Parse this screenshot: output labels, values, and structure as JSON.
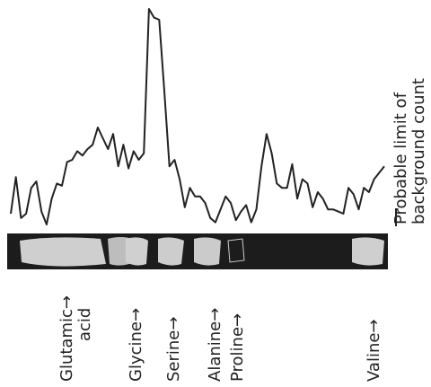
{
  "chart_data": {
    "type": "line",
    "values": [
      5,
      22,
      3,
      5,
      17,
      20,
      6,
      0,
      12,
      19,
      18,
      29,
      30,
      34,
      32,
      35,
      37,
      45,
      40,
      35,
      42,
      27,
      37,
      26,
      34,
      30,
      33,
      100,
      96,
      95,
      62,
      27,
      30,
      21,
      8,
      17,
      13,
      13,
      10,
      3,
      1,
      7,
      13,
      10,
      2,
      6,
      9,
      1,
      7,
      27,
      42,
      33,
      19,
      17,
      17,
      28,
      12,
      21,
      19,
      8,
      15,
      12,
      7,
      7,
      6,
      5,
      17,
      14,
      7,
      17,
      15,
      21,
      24,
      27
    ],
    "color": "#222222",
    "ylim": [
      0,
      100
    ],
    "annotations": [
      "Glutamic→",
      "acid",
      "Glycine→",
      "Serine→",
      "Alanine→",
      "Proline→",
      "Valine→"
    ],
    "side_note": [
      "Probable limit of",
      "background count"
    ]
  }
}
